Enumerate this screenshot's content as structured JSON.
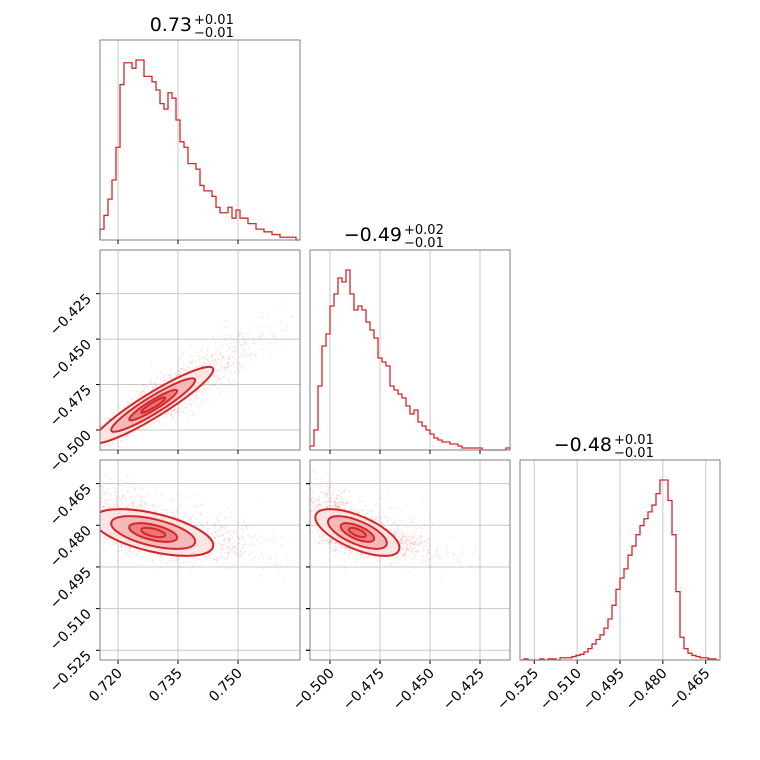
{
  "chart_data": [
    {
      "type": "histogram",
      "panel": "p00",
      "title_main": "0.73",
      "title_sup": "+0.01",
      "title_sub": "−0.01",
      "xlim": [
        0.7155,
        0.7655
      ],
      "bins": [
        0.7155,
        0.7655
      ],
      "counts": [
        4,
        9,
        15,
        22,
        34,
        57,
        65,
        65,
        63,
        66,
        66,
        60,
        60,
        58,
        55,
        50,
        48,
        54,
        52,
        44,
        36,
        34,
        28,
        28,
        26,
        20,
        18,
        18,
        16,
        12,
        10,
        10,
        12,
        8,
        11,
        8,
        8,
        6,
        6,
        4,
        4,
        3,
        3,
        2,
        2,
        1,
        1,
        1,
        1,
        0
      ]
    },
    {
      "type": "histogram",
      "panel": "p11",
      "title_main": "−0.49",
      "title_sup": "+0.02",
      "title_sub": "−0.01",
      "xlim": [
        -0.51,
        -0.41
      ],
      "counts": [
        2,
        10,
        32,
        52,
        58,
        72,
        78,
        86,
        84,
        90,
        78,
        70,
        72,
        70,
        64,
        60,
        56,
        46,
        44,
        42,
        32,
        30,
        28,
        26,
        22,
        18,
        20,
        14,
        12,
        10,
        8,
        6,
        5,
        4,
        4,
        3,
        3,
        2,
        1,
        1,
        1,
        1,
        1,
        0,
        0,
        0,
        0,
        0,
        0,
        1
      ]
    },
    {
      "type": "histogram",
      "panel": "p22",
      "title_main": "−0.48",
      "title_sup": "+0.01",
      "title_sub": "−0.01",
      "xlim": [
        -0.53,
        -0.46
      ],
      "counts": [
        0,
        1,
        0,
        0,
        0,
        1,
        0,
        1,
        1,
        0,
        2,
        2,
        2,
        3,
        4,
        5,
        7,
        10,
        14,
        18,
        22,
        28,
        36,
        48,
        62,
        72,
        80,
        92,
        100,
        110,
        118,
        124,
        130,
        136,
        146,
        158,
        158,
        140,
        110,
        60,
        20,
        10,
        6,
        4,
        3,
        2,
        2,
        1,
        1,
        0
      ]
    },
    {
      "type": "scatter-density",
      "panel": "p10",
      "x_param": 0,
      "y_param": 1,
      "xlim": [
        0.7155,
        0.7655
      ],
      "ylim": [
        -0.511,
        -0.401
      ]
    },
    {
      "type": "scatter-density",
      "panel": "p20",
      "x_param": 0,
      "y_param": 2,
      "xlim": [
        0.7155,
        0.7655
      ],
      "ylim": [
        -0.5285,
        -0.4565
      ]
    },
    {
      "type": "scatter-density",
      "panel": "p21",
      "x_param": 1,
      "y_param": 2,
      "xlim": [
        -0.51,
        -0.41
      ],
      "ylim": [
        -0.5285,
        -0.4565
      ]
    }
  ],
  "axes": {
    "p0": {
      "ticks": [
        0.72,
        0.735,
        0.75
      ],
      "labels": [
        "0.720",
        "0.735",
        "0.750"
      ]
    },
    "p1": {
      "ticks": [
        -0.5,
        -0.475,
        -0.45,
        -0.425
      ],
      "labels": [
        "−0.500",
        "−0.475",
        "−0.450",
        "−0.425"
      ]
    },
    "p2": {
      "ticks": [
        -0.525,
        -0.51,
        -0.495,
        -0.48,
        -0.465
      ],
      "labels": [
        "−0.525",
        "−0.510",
        "−0.495",
        "−0.480",
        "−0.465"
      ]
    }
  },
  "params": [
    {
      "mean": 0.727,
      "sd": 0.0075,
      "skew": 0.012
    },
    {
      "mean": -0.489,
      "sd": 0.0105,
      "skew": 0.018
    },
    {
      "mean": -0.4835,
      "sd": 0.0042,
      "skew": -0.006
    }
  ],
  "correlations": {
    "p10": 0.93,
    "p20": -0.55,
    "p21": -0.65
  },
  "colors": {
    "accent": "#d62728",
    "fill_levels": [
      "#fbe3e3",
      "#f2b3b4",
      "#e5787a"
    ],
    "grid": "#c8c8c8",
    "frame": "#808080"
  }
}
